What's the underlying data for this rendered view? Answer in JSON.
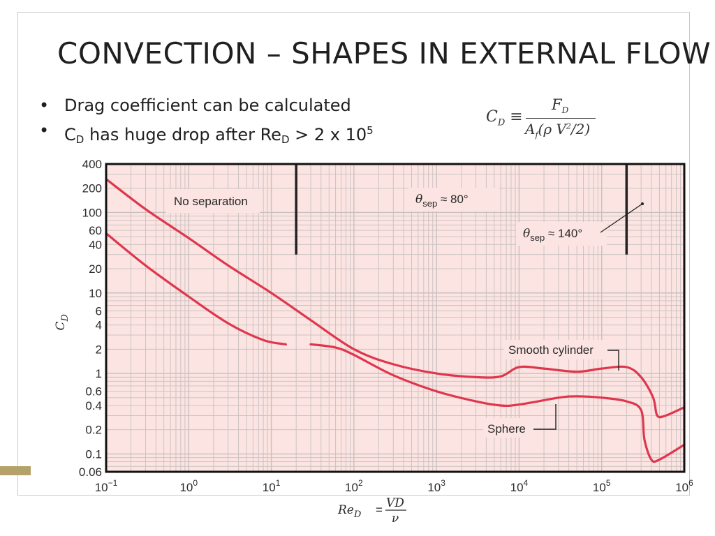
{
  "slide": {
    "title": "CONVECTION – SHAPES IN EXTERNAL FLOW",
    "bullets": [
      {
        "text": "Drag coefficient can be calculated"
      },
      {
        "pre": "C",
        "sub": "D",
        "mid": " has huge drop after Re",
        "sub2": "D",
        "post": " > 2 x 10",
        "sup": "5"
      }
    ],
    "formula": {
      "lhs": "C",
      "lhs_sub": "D",
      "equiv": "≡",
      "numerator": "F",
      "numerator_sub": "D",
      "denominator": "A",
      "denominator_sub": "f",
      "denominator_rest": "(ρ V",
      "denominator_sup": "2",
      "denominator_end": "/2)"
    },
    "colors": {
      "accent_bar": "#b5a26a",
      "frame": "#c9c9c9"
    }
  },
  "chart_data": {
    "type": "line",
    "x_scale": "log",
    "y_scale": "log",
    "xlim": [
      0.1,
      1000000
    ],
    "ylim": [
      0.06,
      400
    ],
    "ylabel_main": "C",
    "ylabel_sub": "D",
    "xlabel": {
      "lhs": "Re",
      "lhs_sub": "D",
      "eq": "=",
      "num": "VD",
      "den": "ν"
    },
    "x_ticks": [
      {
        "value": 0.1,
        "base": "10",
        "exp": "−1"
      },
      {
        "value": 1,
        "base": "10",
        "exp": "0"
      },
      {
        "value": 10,
        "base": "10",
        "exp": "1"
      },
      {
        "value": 100,
        "base": "10",
        "exp": "2"
      },
      {
        "value": 1000,
        "base": "10",
        "exp": "3"
      },
      {
        "value": 10000,
        "base": "10",
        "exp": "4"
      },
      {
        "value": 100000,
        "base": "10",
        "exp": "5"
      },
      {
        "value": 1000000,
        "base": "10",
        "exp": "6"
      }
    ],
    "y_ticks": [
      {
        "value": 400,
        "label": "400"
      },
      {
        "value": 200,
        "label": "200"
      },
      {
        "value": 100,
        "label": "100"
      },
      {
        "value": 60,
        "label": "60"
      },
      {
        "value": 40,
        "label": "40"
      },
      {
        "value": 20,
        "label": "20"
      },
      {
        "value": 10,
        "label": "10"
      },
      {
        "value": 6,
        "label": "6"
      },
      {
        "value": 4,
        "label": "4"
      },
      {
        "value": 2,
        "label": "2"
      },
      {
        "value": 1,
        "label": "1"
      },
      {
        "value": 0.6,
        "label": "0.6"
      },
      {
        "value": 0.4,
        "label": "0.4"
      },
      {
        "value": 0.2,
        "label": "0.2"
      },
      {
        "value": 0.1,
        "label": "0.1"
      },
      {
        "value": 0.06,
        "label": "0.06"
      }
    ],
    "grid": true,
    "colors": {
      "background": "#fbe4e1",
      "grid": "#c8c0bf",
      "curve": "#e0364d",
      "frame": "#111111"
    },
    "series": [
      {
        "name": "Smooth cylinder",
        "segments": [
          [
            [
              0.1,
              260
            ],
            [
              0.3,
              110
            ],
            [
              1,
              48
            ],
            [
              3,
              22
            ],
            [
              10,
              10
            ],
            [
              30,
              4.6
            ],
            [
              100,
              2
            ],
            [
              300,
              1.3
            ],
            [
              1000,
              1.0
            ],
            [
              3000,
              0.9
            ],
            [
              6000,
              0.92
            ],
            [
              10000,
              1.2
            ],
            [
              20000,
              1.15
            ],
            [
              50000,
              1.05
            ],
            [
              100000,
              1.15
            ],
            [
              200000,
              1.2
            ],
            [
              300000,
              0.9
            ],
            [
              420000,
              0.5
            ],
            [
              470000,
              0.3
            ],
            [
              600000,
              0.3
            ],
            [
              1000000,
              0.38
            ]
          ]
        ]
      },
      {
        "name": "Sphere",
        "segments": [
          [
            [
              0.1,
              55
            ],
            [
              0.3,
              22
            ],
            [
              1,
              9
            ],
            [
              3,
              4.2
            ],
            [
              8,
              2.6
            ],
            [
              15,
              2.3
            ]
          ],
          [
            [
              30,
              2.3
            ],
            [
              60,
              2.1
            ],
            [
              100,
              1.7
            ],
            [
              300,
              0.95
            ],
            [
              1000,
              0.6
            ],
            [
              3000,
              0.45
            ],
            [
              6000,
              0.4
            ],
            [
              10000,
              0.41
            ],
            [
              30000,
              0.5
            ],
            [
              50000,
              0.52
            ],
            [
              100000,
              0.5
            ],
            [
              200000,
              0.45
            ],
            [
              300000,
              0.35
            ],
            [
              330000,
              0.15
            ],
            [
              400000,
              0.085
            ],
            [
              500000,
              0.085
            ],
            [
              1000000,
              0.13
            ]
          ]
        ]
      }
    ],
    "separators": [
      {
        "x": 20,
        "y_from": 30,
        "y_to": 400
      },
      {
        "x": 200000,
        "y_from": 30,
        "y_to": 400
      }
    ],
    "annotations": {
      "no_separation": "No separation",
      "theta80": {
        "sym": "θ",
        "sub": "sep",
        "text": " ≈ 80°"
      },
      "theta140": {
        "sym": "θ",
        "sub": "sep",
        "text": " ≈ 140°"
      },
      "cylinder": "Smooth cylinder",
      "sphere": "Sphere"
    }
  }
}
